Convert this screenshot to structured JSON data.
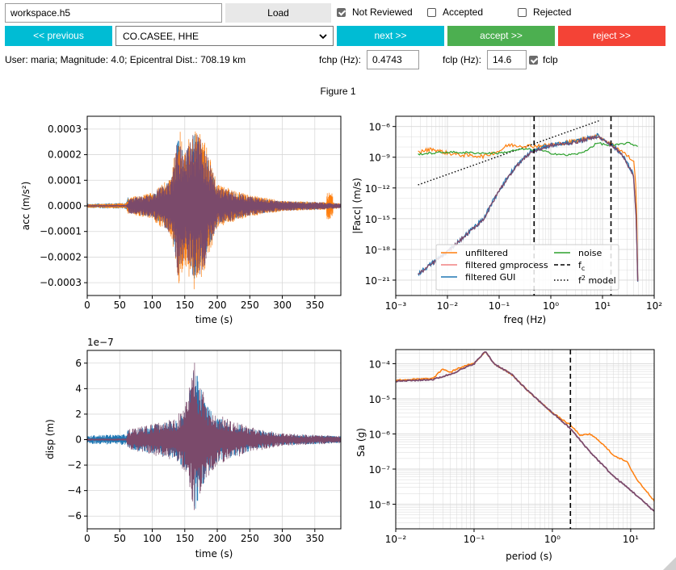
{
  "toolbar": {
    "workspace_value": "workspace.h5",
    "load_label": "Load",
    "not_reviewed_label": "Not Reviewed",
    "not_reviewed_checked": true,
    "accepted_label": "Accepted",
    "accepted_checked": false,
    "rejected_label": "Rejected",
    "rejected_checked": false
  },
  "nav": {
    "previous_label": "<< previous",
    "channel_selected": "CO.CASEE, HHE",
    "next_label": "next >>",
    "accept_label": "accept >>",
    "reject_label": "reject >>"
  },
  "info": {
    "summary": "User: maria; Magnitude: 4.0; Epicentral Dist.: 708.19 km",
    "fchp_label": "fchp (Hz):",
    "fchp_value": "0.4743",
    "fclp_label": "fclp (Hz):",
    "fclp_value": "14.6",
    "fclp_checkbox_label": "fclp",
    "fclp_checked": true
  },
  "figure": {
    "title": "Figure 1"
  },
  "colors": {
    "unfiltered": "#ff7f0e",
    "filtered_gmprocess": "#f08080",
    "filtered_gui": "#1f77b4",
    "noise": "#2ca02c",
    "combined": "#7b4a6b",
    "btn_cyan": "#00bcd4",
    "btn_green": "#4caf50",
    "btn_red": "#f44336"
  },
  "chart_data": [
    {
      "type": "line",
      "xlabel": "time (s)",
      "ylabel": "acc (m/s²)",
      "xlim": [
        0,
        390
      ],
      "ylim": [
        -0.00035,
        0.00035
      ],
      "xticks": [
        "0",
        "50",
        "100",
        "150",
        "200",
        "250",
        "300",
        "350"
      ],
      "yticks": [
        "0.0003",
        "0.0002",
        "0.0001",
        "0.0000",
        "−0.0001",
        "−0.0002",
        "−0.0003"
      ],
      "envelope": {
        "t": [
          0,
          60,
          63,
          100,
          130,
          140,
          150,
          165,
          180,
          200,
          250,
          300,
          360,
          390
        ],
        "amp": [
          7e-06,
          1e-05,
          3e-05,
          5e-05,
          0.00012,
          0.0003,
          0.00022,
          0.00032,
          0.00025,
          8e-05,
          4e-05,
          2e-05,
          1.5e-05,
          1e-05
        ]
      }
    },
    {
      "type": "line",
      "xlabel": "freq (Hz)",
      "ylabel": "|Facc| (m/s)",
      "xscale": "log",
      "yscale": "log",
      "xticks": [
        "10⁻³",
        "10⁻²",
        "10⁻¹",
        "10⁰",
        "10¹",
        "10²"
      ],
      "yticks": [
        "10⁻⁶",
        "10⁻⁹",
        "10⁻¹²",
        "10⁻¹⁵",
        "10⁻¹⁸",
        "10⁻²¹"
      ],
      "vlines_hz": [
        0.4743,
        14.6
      ],
      "legend": [
        "unfiltered",
        "filtered gmprocess",
        "filtered GUI",
        "noise",
        "fc",
        "f² model"
      ],
      "legend_position": "bottom-center"
    },
    {
      "type": "line",
      "xlabel": "time (s)",
      "ylabel": "disp (m)",
      "offset_label": "1e−7",
      "xlim": [
        0,
        390
      ],
      "ylim": [
        -7,
        7
      ],
      "xticks": [
        "0",
        "50",
        "100",
        "150",
        "200",
        "250",
        "300",
        "350"
      ],
      "yticks": [
        "6",
        "4",
        "2",
        "0",
        "−2",
        "−4",
        "−6"
      ],
      "envelope": {
        "t": [
          0,
          60,
          63,
          130,
          150,
          165,
          185,
          200,
          250,
          300,
          390
        ],
        "amp": [
          0.3,
          0.4,
          0.8,
          1.6,
          2.5,
          6.3,
          3,
          2,
          1,
          0.5,
          0.3
        ]
      }
    },
    {
      "type": "line",
      "xlabel": "period (s)",
      "ylabel": "Sa (g)",
      "xscale": "log",
      "yscale": "log",
      "xticks": [
        "10⁻²",
        "10⁻¹",
        "10⁰",
        "10¹"
      ],
      "yticks": [
        "10⁻⁴",
        "10⁻⁵",
        "10⁻⁶",
        "10⁻⁷",
        "10⁻⁸"
      ],
      "vline_period_s": 1.7
    }
  ]
}
